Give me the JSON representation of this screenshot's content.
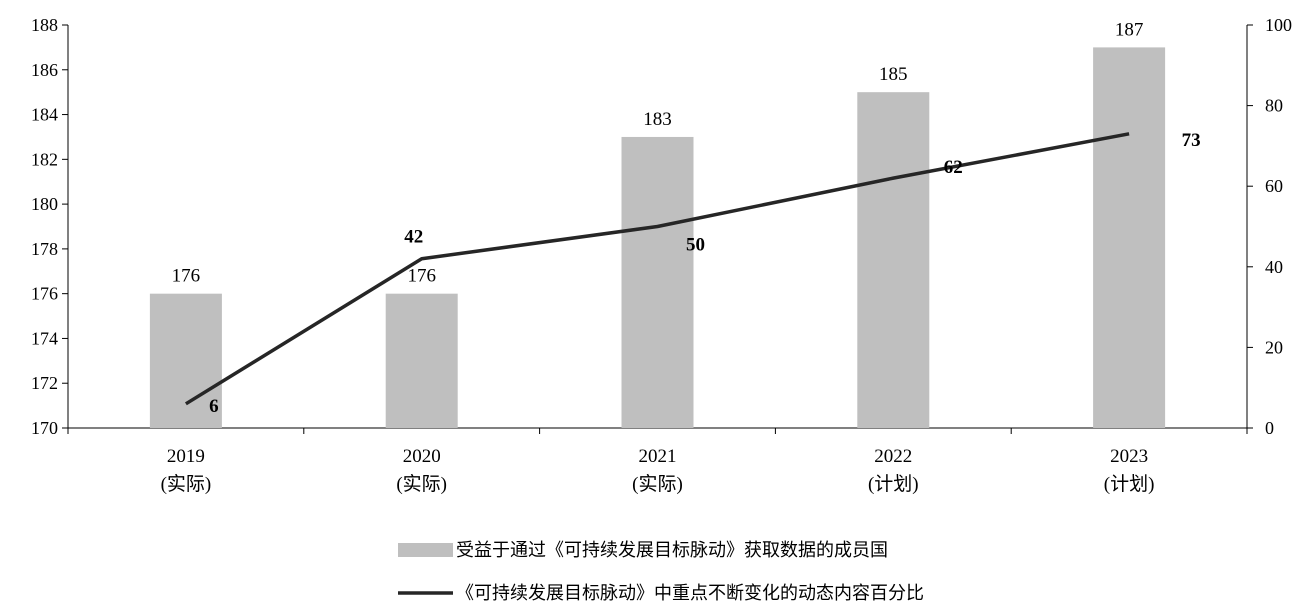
{
  "chart_data": {
    "type": "bar+line",
    "categories": [
      "2019",
      "2020",
      "2021",
      "2022",
      "2023"
    ],
    "category_sublabels": [
      "(实际)",
      "(实际)",
      "(实际)",
      "(计划)",
      "(计划)"
    ],
    "series": [
      {
        "name": "受益于通过《可持续发展目标脉动》获取数据的成员国",
        "type": "bar",
        "axis": "left",
        "color": "#bfbfbf",
        "values": [
          176,
          176,
          183,
          185,
          187
        ]
      },
      {
        "name": "《可持续发展目标脉动》中重点不断变化的动态内容百分比",
        "type": "line",
        "axis": "right",
        "color": "#262626",
        "values": [
          6,
          42,
          50,
          62,
          73
        ]
      }
    ],
    "y_left": {
      "min": 170,
      "max": 188,
      "step": 2,
      "ticks": [
        "170",
        "172",
        "174",
        "176",
        "178",
        "180",
        "182",
        "184",
        "186",
        "188"
      ]
    },
    "y_right": {
      "min": 0,
      "max": 100,
      "step": 20,
      "ticks": [
        "0",
        "20",
        "40",
        "60",
        "80",
        "100"
      ]
    },
    "grid": false,
    "legend_position": "bottom"
  }
}
